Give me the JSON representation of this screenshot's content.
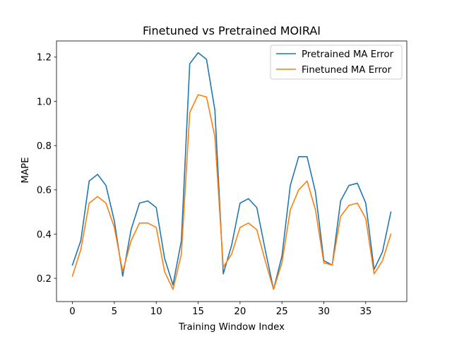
{
  "chart_data": {
    "type": "line",
    "title": "Finetuned vs Pretrained MOIRAI",
    "xlabel": "Training Window Index",
    "ylabel": "MAPE",
    "xlim": [
      -1.9,
      39.9
    ],
    "ylim": [
      0.095,
      1.273
    ],
    "xticks": [
      0,
      5,
      10,
      15,
      20,
      25,
      30,
      35
    ],
    "yticks": [
      0.2,
      0.4,
      0.6,
      0.8,
      1.0,
      1.2
    ],
    "ytick_labels": [
      "0.2",
      "0.4",
      "0.6",
      "0.8",
      "1.0",
      "1.2"
    ],
    "grid": false,
    "legend_position": "top-right",
    "x": [
      0,
      1,
      2,
      3,
      4,
      5,
      6,
      7,
      8,
      9,
      10,
      11,
      12,
      13,
      14,
      15,
      16,
      17,
      18,
      19,
      20,
      21,
      22,
      23,
      24,
      25,
      26,
      27,
      28,
      29,
      30,
      31,
      32,
      33,
      34,
      35,
      36,
      37,
      38
    ],
    "series": [
      {
        "name": "Pretrained MA Error",
        "color": "#1f77b4",
        "values": [
          0.26,
          0.37,
          0.64,
          0.67,
          0.62,
          0.46,
          0.21,
          0.42,
          0.54,
          0.55,
          0.52,
          0.29,
          0.17,
          0.37,
          1.17,
          1.22,
          1.19,
          0.96,
          0.22,
          0.35,
          0.54,
          0.56,
          0.52,
          0.33,
          0.15,
          0.3,
          0.62,
          0.75,
          0.75,
          0.59,
          0.28,
          0.26,
          0.55,
          0.62,
          0.63,
          0.54,
          0.24,
          0.32,
          0.5
        ]
      },
      {
        "name": "Finetuned MA Error",
        "color": "#ff7f0e",
        "values": [
          0.21,
          0.33,
          0.54,
          0.57,
          0.54,
          0.43,
          0.23,
          0.37,
          0.45,
          0.45,
          0.43,
          0.23,
          0.15,
          0.31,
          0.95,
          1.03,
          1.02,
          0.84,
          0.25,
          0.31,
          0.43,
          0.45,
          0.42,
          0.28,
          0.15,
          0.27,
          0.51,
          0.6,
          0.64,
          0.51,
          0.27,
          0.26,
          0.48,
          0.53,
          0.54,
          0.47,
          0.22,
          0.28,
          0.4
        ]
      }
    ]
  }
}
